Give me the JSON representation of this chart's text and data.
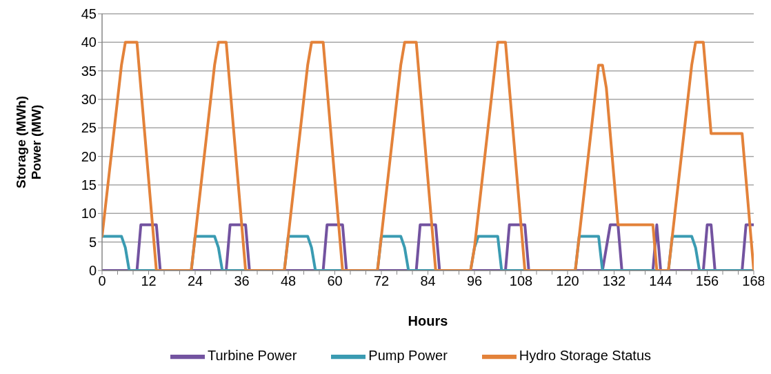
{
  "chart_data": {
    "type": "line",
    "xlabel": "Hours",
    "ylabel": "Storage (MWh)\nPower (MW)",
    "xlim": [
      0,
      168
    ],
    "xticks": [
      0,
      {
        "value": 4,
        "label": null
      },
      {
        "value": 8,
        "label": null
      },
      12,
      {
        "value": 16,
        "label": null
      },
      {
        "value": 20,
        "label": null
      },
      24,
      {
        "value": 28,
        "label": null
      },
      {
        "value": 32,
        "label": null
      },
      36,
      {
        "value": 40,
        "label": null
      },
      {
        "value": 44,
        "label": null
      },
      48,
      {
        "value": 52,
        "label": null
      },
      {
        "value": 56,
        "label": null
      },
      60,
      {
        "value": 64,
        "label": null
      },
      {
        "value": 68,
        "label": null
      },
      72,
      {
        "value": 76,
        "label": null
      },
      {
        "value": 80,
        "label": null
      },
      84,
      {
        "value": 88,
        "label": null
      },
      {
        "value": 92,
        "label": null
      },
      96,
      {
        "value": 100,
        "label": null
      },
      {
        "value": 104,
        "label": null
      },
      108,
      {
        "value": 112,
        "label": null
      },
      {
        "value": 116,
        "label": null
      },
      120,
      {
        "value": 124,
        "label": null
      },
      {
        "value": 128,
        "label": null
      },
      132,
      {
        "value": 136,
        "label": null
      },
      {
        "value": 140,
        "label": null
      },
      144,
      {
        "value": 148,
        "label": null
      },
      {
        "value": 152,
        "label": null
      },
      156,
      {
        "value": 160,
        "label": null
      },
      {
        "value": 164,
        "label": null
      },
      168
    ],
    "ylim": [
      0,
      45
    ],
    "yticks": [
      0,
      5,
      10,
      15,
      20,
      25,
      30,
      35,
      40,
      45
    ],
    "grid": "y",
    "legend": "bottom",
    "marker": "none",
    "line_style": "solid",
    "series": [
      {
        "name": "Turbine Power",
        "color": "#7353a0",
        "x": [
          0,
          9,
          10,
          14,
          15,
          32,
          33,
          37,
          38,
          57,
          58,
          62,
          63,
          81,
          82,
          86,
          87,
          104,
          105,
          109,
          110,
          129,
          130,
          131,
          133,
          134,
          142,
          143,
          144,
          155,
          156,
          157,
          158,
          165,
          166,
          168
        ],
        "values": [
          0,
          0,
          8,
          8,
          0,
          0,
          8,
          8,
          0,
          0,
          8,
          8,
          0,
          0,
          8,
          8,
          0,
          0,
          8,
          8,
          0,
          0,
          4,
          8,
          8,
          0,
          0,
          8,
          0,
          0,
          8,
          8,
          0,
          0,
          8,
          8
        ]
      },
      {
        "name": "Pump Power",
        "color": "#3a9bb2",
        "x": [
          0,
          5,
          6,
          7,
          23,
          24,
          29,
          30,
          31,
          47,
          48,
          53,
          54,
          55,
          71,
          72,
          77,
          78,
          79,
          95,
          96,
          97,
          102,
          103,
          122,
          123,
          128,
          129,
          146,
          147,
          152,
          153,
          154,
          168
        ],
        "values": [
          6,
          6,
          4,
          0,
          0,
          6,
          6,
          4,
          0,
          0,
          6,
          6,
          4,
          0,
          0,
          6,
          6,
          4,
          0,
          0,
          4,
          6,
          6,
          0,
          0,
          6,
          6,
          0,
          0,
          6,
          6,
          4,
          0,
          0
        ]
      },
      {
        "name": "Hydro Storage Status",
        "color": "#e3823a",
        "x": [
          0,
          5,
          6,
          9,
          14,
          23,
          29,
          30,
          32,
          37,
          47,
          53,
          54,
          57,
          62,
          71,
          77,
          78,
          81,
          86,
          95,
          96,
          102,
          104,
          109,
          122,
          128,
          129,
          130,
          133,
          142,
          143,
          146,
          152,
          153,
          155,
          157,
          165,
          168
        ],
        "values": [
          6,
          36,
          40,
          40,
          0,
          0,
          36,
          40,
          40,
          0,
          0,
          36,
          40,
          40,
          0,
          0,
          36,
          40,
          40,
          0,
          0,
          4,
          40,
          40,
          0,
          0,
          36,
          36,
          32,
          8,
          8,
          0,
          0,
          36,
          40,
          40,
          24,
          24,
          0
        ]
      }
    ]
  }
}
